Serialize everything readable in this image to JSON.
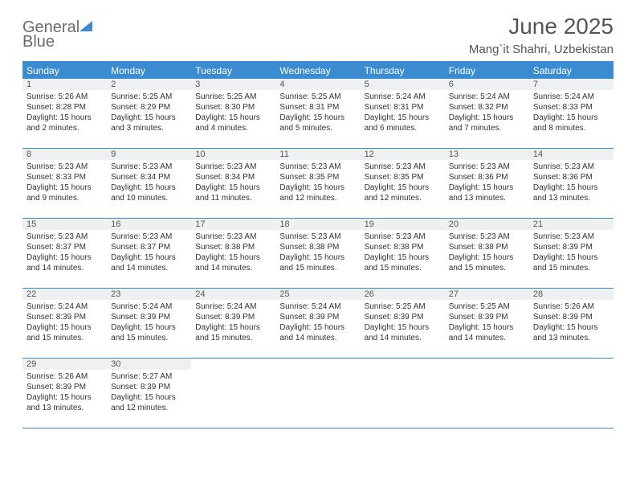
{
  "logo": {
    "text_general": "General",
    "text_blue": "Blue",
    "shape_color": "#3a8bd0"
  },
  "title": "June 2025",
  "location": "Mang`it Shahri, Uzbekistan",
  "colors": {
    "accent": "#3a8bd0",
    "header_text": "#ffffff",
    "daynum_bg": "#eff0f1",
    "text": "#333333",
    "subtext": "#555555",
    "border": "#3a8bd0"
  },
  "weekdays": [
    "Sunday",
    "Monday",
    "Tuesday",
    "Wednesday",
    "Thursday",
    "Friday",
    "Saturday"
  ],
  "days": [
    {
      "n": "1",
      "sunrise": "Sunrise: 5:26 AM",
      "sunset": "Sunset: 8:28 PM",
      "daylight": "Daylight: 15 hours and 2 minutes."
    },
    {
      "n": "2",
      "sunrise": "Sunrise: 5:25 AM",
      "sunset": "Sunset: 8:29 PM",
      "daylight": "Daylight: 15 hours and 3 minutes."
    },
    {
      "n": "3",
      "sunrise": "Sunrise: 5:25 AM",
      "sunset": "Sunset: 8:30 PM",
      "daylight": "Daylight: 15 hours and 4 minutes."
    },
    {
      "n": "4",
      "sunrise": "Sunrise: 5:25 AM",
      "sunset": "Sunset: 8:31 PM",
      "daylight": "Daylight: 15 hours and 5 minutes."
    },
    {
      "n": "5",
      "sunrise": "Sunrise: 5:24 AM",
      "sunset": "Sunset: 8:31 PM",
      "daylight": "Daylight: 15 hours and 6 minutes."
    },
    {
      "n": "6",
      "sunrise": "Sunrise: 5:24 AM",
      "sunset": "Sunset: 8:32 PM",
      "daylight": "Daylight: 15 hours and 7 minutes."
    },
    {
      "n": "7",
      "sunrise": "Sunrise: 5:24 AM",
      "sunset": "Sunset: 8:33 PM",
      "daylight": "Daylight: 15 hours and 8 minutes."
    },
    {
      "n": "8",
      "sunrise": "Sunrise: 5:23 AM",
      "sunset": "Sunset: 8:33 PM",
      "daylight": "Daylight: 15 hours and 9 minutes."
    },
    {
      "n": "9",
      "sunrise": "Sunrise: 5:23 AM",
      "sunset": "Sunset: 8:34 PM",
      "daylight": "Daylight: 15 hours and 10 minutes."
    },
    {
      "n": "10",
      "sunrise": "Sunrise: 5:23 AM",
      "sunset": "Sunset: 8:34 PM",
      "daylight": "Daylight: 15 hours and 11 minutes."
    },
    {
      "n": "11",
      "sunrise": "Sunrise: 5:23 AM",
      "sunset": "Sunset: 8:35 PM",
      "daylight": "Daylight: 15 hours and 12 minutes."
    },
    {
      "n": "12",
      "sunrise": "Sunrise: 5:23 AM",
      "sunset": "Sunset: 8:35 PM",
      "daylight": "Daylight: 15 hours and 12 minutes."
    },
    {
      "n": "13",
      "sunrise": "Sunrise: 5:23 AM",
      "sunset": "Sunset: 8:36 PM",
      "daylight": "Daylight: 15 hours and 13 minutes."
    },
    {
      "n": "14",
      "sunrise": "Sunrise: 5:23 AM",
      "sunset": "Sunset: 8:36 PM",
      "daylight": "Daylight: 15 hours and 13 minutes."
    },
    {
      "n": "15",
      "sunrise": "Sunrise: 5:23 AM",
      "sunset": "Sunset: 8:37 PM",
      "daylight": "Daylight: 15 hours and 14 minutes."
    },
    {
      "n": "16",
      "sunrise": "Sunrise: 5:23 AM",
      "sunset": "Sunset: 8:37 PM",
      "daylight": "Daylight: 15 hours and 14 minutes."
    },
    {
      "n": "17",
      "sunrise": "Sunrise: 5:23 AM",
      "sunset": "Sunset: 8:38 PM",
      "daylight": "Daylight: 15 hours and 14 minutes."
    },
    {
      "n": "18",
      "sunrise": "Sunrise: 5:23 AM",
      "sunset": "Sunset: 8:38 PM",
      "daylight": "Daylight: 15 hours and 15 minutes."
    },
    {
      "n": "19",
      "sunrise": "Sunrise: 5:23 AM",
      "sunset": "Sunset: 8:38 PM",
      "daylight": "Daylight: 15 hours and 15 minutes."
    },
    {
      "n": "20",
      "sunrise": "Sunrise: 5:23 AM",
      "sunset": "Sunset: 8:38 PM",
      "daylight": "Daylight: 15 hours and 15 minutes."
    },
    {
      "n": "21",
      "sunrise": "Sunrise: 5:23 AM",
      "sunset": "Sunset: 8:39 PM",
      "daylight": "Daylight: 15 hours and 15 minutes."
    },
    {
      "n": "22",
      "sunrise": "Sunrise: 5:24 AM",
      "sunset": "Sunset: 8:39 PM",
      "daylight": "Daylight: 15 hours and 15 minutes."
    },
    {
      "n": "23",
      "sunrise": "Sunrise: 5:24 AM",
      "sunset": "Sunset: 8:39 PM",
      "daylight": "Daylight: 15 hours and 15 minutes."
    },
    {
      "n": "24",
      "sunrise": "Sunrise: 5:24 AM",
      "sunset": "Sunset: 8:39 PM",
      "daylight": "Daylight: 15 hours and 15 minutes."
    },
    {
      "n": "25",
      "sunrise": "Sunrise: 5:24 AM",
      "sunset": "Sunset: 8:39 PM",
      "daylight": "Daylight: 15 hours and 14 minutes."
    },
    {
      "n": "26",
      "sunrise": "Sunrise: 5:25 AM",
      "sunset": "Sunset: 8:39 PM",
      "daylight": "Daylight: 15 hours and 14 minutes."
    },
    {
      "n": "27",
      "sunrise": "Sunrise: 5:25 AM",
      "sunset": "Sunset: 8:39 PM",
      "daylight": "Daylight: 15 hours and 14 minutes."
    },
    {
      "n": "28",
      "sunrise": "Sunrise: 5:26 AM",
      "sunset": "Sunset: 8:39 PM",
      "daylight": "Daylight: 15 hours and 13 minutes."
    },
    {
      "n": "29",
      "sunrise": "Sunrise: 5:26 AM",
      "sunset": "Sunset: 8:39 PM",
      "daylight": "Daylight: 15 hours and 13 minutes."
    },
    {
      "n": "30",
      "sunrise": "Sunrise: 5:27 AM",
      "sunset": "Sunset: 8:39 PM",
      "daylight": "Daylight: 15 hours and 12 minutes."
    }
  ]
}
